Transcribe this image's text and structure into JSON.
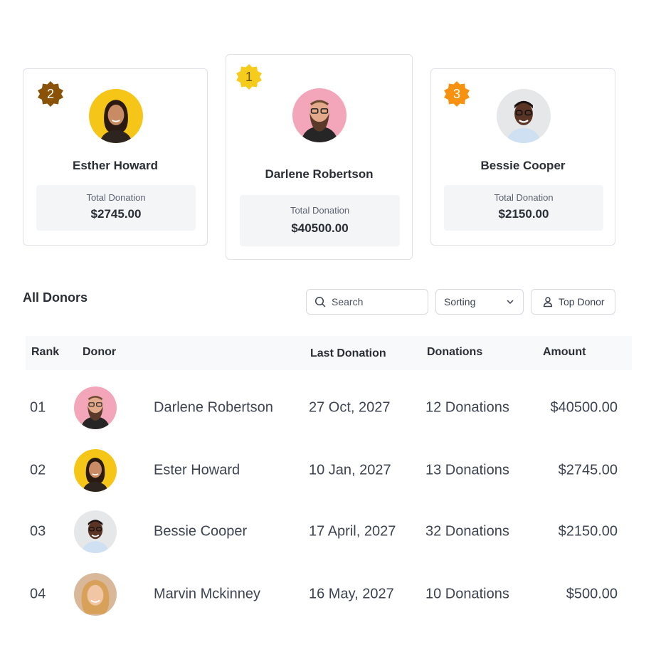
{
  "top_donors": [
    {
      "rank": "2",
      "name": "Esther Howard",
      "donation_label": "Total Donation",
      "donation_value": "$2745.00",
      "badge_color": "#8a5206"
    },
    {
      "rank": "1",
      "name": "Darlene Robertson",
      "donation_label": "Total Donation",
      "donation_value": "$40500.00",
      "badge_color": "#f5cc1b"
    },
    {
      "rank": "3",
      "name": "Bessie Cooper",
      "donation_label": "Total Donation",
      "donation_value": "$2150.00",
      "badge_color": "#f6920f"
    }
  ],
  "section": {
    "title": "All Donors"
  },
  "controls": {
    "search_placeholder": "Search",
    "sorting_label": "Sorting",
    "top_donor_label": "Top Donor"
  },
  "table": {
    "headers": {
      "rank": "Rank",
      "donor": "Donor",
      "last_donation": "Last Donation",
      "donations": "Donations",
      "amount": "Amount"
    },
    "rows": [
      {
        "rank": "01",
        "name": "Darlene Robertson",
        "last_donation": "27 Oct, 2027",
        "donations": "12 Donations",
        "amount": "$40500.00"
      },
      {
        "rank": "02",
        "name": "Ester Howard",
        "last_donation": "10 Jan, 2027",
        "donations": "13 Donations",
        "amount": "$2745.00"
      },
      {
        "rank": "03",
        "name": "Bessie Cooper",
        "last_donation": "17 April, 2027",
        "donations": "32 Donations",
        "amount": "$2150.00"
      },
      {
        "rank": "04",
        "name": "Marvin Mckinney",
        "last_donation": "16 May, 2027",
        "donations": "10 Donations",
        "amount": "$500.00"
      }
    ]
  }
}
